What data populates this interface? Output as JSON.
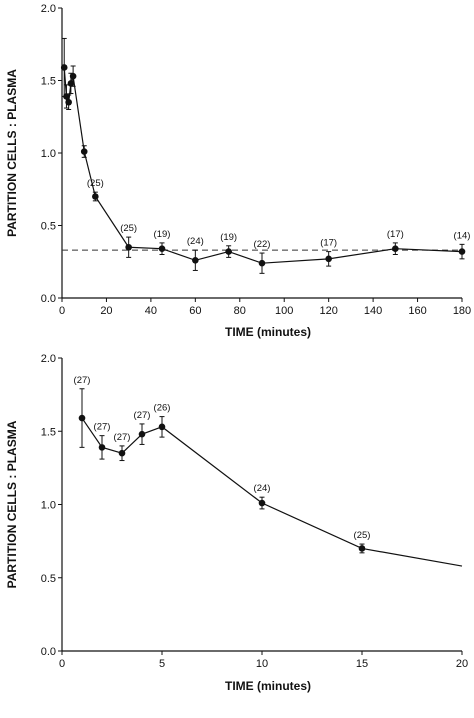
{
  "chart_data": [
    {
      "type": "line",
      "xlabel": "TIME (minutes)",
      "ylabel": "PARTITION CELLS : PLASMA",
      "xlim": [
        0,
        180
      ],
      "ylim": [
        0,
        2.0
      ],
      "xticks": [
        "0",
        "20",
        "40",
        "60",
        "80",
        "100",
        "120",
        "140",
        "160",
        "180"
      ],
      "yticks": [
        "0.0",
        "0.5",
        "1.0",
        "1.5",
        "2.0"
      ],
      "grid": false,
      "reference_line": {
        "y": 0.33,
        "style": "dashed"
      },
      "series": [
        {
          "points": [
            {
              "x": 1,
              "y": 1.59,
              "err": 0.2
            },
            {
              "x": 2,
              "y": 1.39,
              "err": 0.08
            },
            {
              "x": 3,
              "y": 1.35,
              "err": 0.05
            },
            {
              "x": 4,
              "y": 1.48,
              "err": 0.07
            },
            {
              "x": 5,
              "y": 1.53,
              "err": 0.07
            },
            {
              "x": 10,
              "y": 1.01,
              "err": 0.04
            },
            {
              "x": 15,
              "y": 0.7,
              "err": 0.03,
              "n": "(25)"
            },
            {
              "x": 30,
              "y": 0.35,
              "err": 0.07,
              "n": "(25)"
            },
            {
              "x": 45,
              "y": 0.34,
              "err": 0.04,
              "n": "(19)"
            },
            {
              "x": 60,
              "y": 0.26,
              "err": 0.07,
              "n": "(24)"
            },
            {
              "x": 75,
              "y": 0.32,
              "err": 0.04,
              "n": "(19)"
            },
            {
              "x": 90,
              "y": 0.24,
              "err": 0.07,
              "n": "(22)"
            },
            {
              "x": 120,
              "y": 0.27,
              "err": 0.05,
              "n": "(17)"
            },
            {
              "x": 150,
              "y": 0.34,
              "err": 0.04,
              "n": "(17)"
            },
            {
              "x": 180,
              "y": 0.32,
              "err": 0.05,
              "n": "(14)"
            }
          ]
        }
      ]
    },
    {
      "type": "line",
      "xlabel": "TIME (minutes)",
      "ylabel": "PARTITION CELLS : PLASMA",
      "xlim": [
        0,
        20
      ],
      "ylim": [
        0,
        2.0
      ],
      "xticks": [
        "0",
        "5",
        "10",
        "15",
        "20"
      ],
      "yticks": [
        "0.0",
        "0.5",
        "1.0",
        "1.5",
        "2.0"
      ],
      "grid": false,
      "series": [
        {
          "points": [
            {
              "x": 1,
              "y": 1.59,
              "err": 0.2,
              "n": "(27)"
            },
            {
              "x": 2,
              "y": 1.39,
              "err": 0.08,
              "n": "(27)"
            },
            {
              "x": 3,
              "y": 1.35,
              "err": 0.05,
              "n": "(27)"
            },
            {
              "x": 4,
              "y": 1.48,
              "err": 0.07,
              "n": "(27)"
            },
            {
              "x": 5,
              "y": 1.53,
              "err": 0.07,
              "n": "(26)"
            },
            {
              "x": 10,
              "y": 1.01,
              "err": 0.04,
              "n": "(24)"
            },
            {
              "x": 15,
              "y": 0.7,
              "err": 0.03,
              "n": "(25)"
            }
          ],
          "tail": {
            "x": 20,
            "y": 0.58
          }
        }
      ]
    }
  ]
}
